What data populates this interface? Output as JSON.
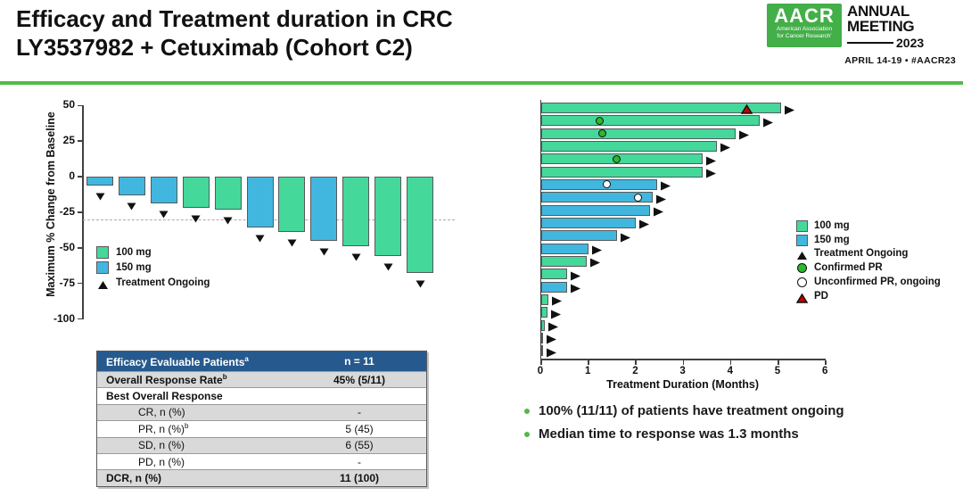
{
  "header": {
    "title_line1": "Efficacy and Treatment duration in CRC",
    "title_line2": "LY3537982 + Cetuximab (Cohort C2)",
    "logo": {
      "acronym": "AACR",
      "org_line1": "American Association",
      "org_line2": "for Cancer Research'",
      "event_line1": "ANNUAL",
      "event_line2": "MEETING",
      "event_year": "2023",
      "dates": "APRIL 14-19 • #AACR23"
    }
  },
  "colors": {
    "dose_100mg": "#44D89B",
    "dose_150mg": "#41B7DF",
    "header_rule_green": "#53B94A",
    "logo_green": "#43AF49",
    "table_header_bg": "#265A8E",
    "table_row_shaded": "#D9D9D9",
    "pd_red": "#C00000",
    "confirmed_pr_green": "#2DB82D",
    "bullet_green": "#53B94A"
  },
  "chart_data": [
    {
      "id": "waterfall",
      "type": "bar",
      "title": "",
      "ylabel": "Maximum % Change from Baseline",
      "ylim": [
        -100,
        50
      ],
      "yticks": [
        50,
        25,
        0,
        -25,
        -50,
        -75,
        -100
      ],
      "reference_line_y": -30,
      "grid": false,
      "legend_position": "inside-left",
      "legend": [
        {
          "marker": "square",
          "color": "dose_100mg",
          "label": "100 mg"
        },
        {
          "marker": "square",
          "color": "dose_150mg",
          "label": "150 mg"
        },
        {
          "marker": "triangle-up-black",
          "label": "Treatment Ongoing"
        }
      ],
      "bars": [
        {
          "value": -6,
          "dose": "150 mg",
          "treatment_ongoing": true
        },
        {
          "value": -13,
          "dose": "150 mg",
          "treatment_ongoing": true
        },
        {
          "value": -19,
          "dose": "150 mg",
          "treatment_ongoing": true
        },
        {
          "value": -22,
          "dose": "100 mg",
          "treatment_ongoing": true
        },
        {
          "value": -23,
          "dose": "100 mg",
          "treatment_ongoing": true
        },
        {
          "value": -36,
          "dose": "150 mg",
          "treatment_ongoing": true
        },
        {
          "value": -39,
          "dose": "100 mg",
          "treatment_ongoing": true
        },
        {
          "value": -45,
          "dose": "150 mg",
          "treatment_ongoing": true
        },
        {
          "value": -49,
          "dose": "100 mg",
          "treatment_ongoing": true
        },
        {
          "value": -56,
          "dose": "100 mg",
          "treatment_ongoing": true
        },
        {
          "value": -68,
          "dose": "100 mg",
          "treatment_ongoing": true
        }
      ]
    },
    {
      "id": "swimmer",
      "type": "bar",
      "orientation": "horizontal",
      "xlabel": "Treatment Duration (Months)",
      "xlim": [
        0,
        6
      ],
      "xticks": [
        0,
        1,
        2,
        3,
        4,
        5,
        6
      ],
      "legend": [
        {
          "marker": "square",
          "color": "dose_100mg",
          "label": "100 mg"
        },
        {
          "marker": "square",
          "color": "dose_150mg",
          "label": "150 mg"
        },
        {
          "marker": "triangle-up-black",
          "label": "Treatment Ongoing"
        },
        {
          "marker": "circle-green",
          "label": "Confirmed PR"
        },
        {
          "marker": "circle-white",
          "label": "Unconfirmed PR, ongoing"
        },
        {
          "marker": "triangle-up-red",
          "label": "PD"
        }
      ],
      "bars": [
        {
          "duration_months": 5.05,
          "dose": "100 mg",
          "treatment_ongoing": true,
          "markers": [
            {
              "type": "pd",
              "x": 4.35
            }
          ]
        },
        {
          "duration_months": 4.6,
          "dose": "100 mg",
          "treatment_ongoing": true,
          "markers": [
            {
              "type": "confirmed_pr",
              "x": 1.25
            }
          ]
        },
        {
          "duration_months": 4.1,
          "dose": "100 mg",
          "treatment_ongoing": true,
          "markers": [
            {
              "type": "confirmed_pr",
              "x": 1.3
            }
          ]
        },
        {
          "duration_months": 3.7,
          "dose": "100 mg",
          "treatment_ongoing": true,
          "markers": []
        },
        {
          "duration_months": 3.4,
          "dose": "100 mg",
          "treatment_ongoing": true,
          "markers": [
            {
              "type": "confirmed_pr",
              "x": 1.6
            }
          ]
        },
        {
          "duration_months": 3.4,
          "dose": "100 mg",
          "treatment_ongoing": true,
          "markers": []
        },
        {
          "duration_months": 2.45,
          "dose": "150 mg",
          "treatment_ongoing": true,
          "markers": [
            {
              "type": "unconfirmed_pr",
              "x": 1.4
            }
          ]
        },
        {
          "duration_months": 2.35,
          "dose": "150 mg",
          "treatment_ongoing": true,
          "markers": [
            {
              "type": "unconfirmed_pr",
              "x": 2.05
            }
          ]
        },
        {
          "duration_months": 2.3,
          "dose": "150 mg",
          "treatment_ongoing": true,
          "markers": []
        },
        {
          "duration_months": 2.0,
          "dose": "150 mg",
          "treatment_ongoing": true,
          "markers": []
        },
        {
          "duration_months": 1.6,
          "dose": "150 mg",
          "treatment_ongoing": true,
          "markers": []
        },
        {
          "duration_months": 1.0,
          "dose": "150 mg",
          "treatment_ongoing": true,
          "markers": []
        },
        {
          "duration_months": 0.95,
          "dose": "100 mg",
          "treatment_ongoing": true,
          "markers": []
        },
        {
          "duration_months": 0.55,
          "dose": "100 mg",
          "treatment_ongoing": true,
          "markers": []
        },
        {
          "duration_months": 0.55,
          "dose": "150 mg",
          "treatment_ongoing": true,
          "markers": []
        },
        {
          "duration_months": 0.15,
          "dose": "100 mg",
          "treatment_ongoing": true,
          "markers": []
        },
        {
          "duration_months": 0.13,
          "dose": "100 mg",
          "treatment_ongoing": true,
          "markers": []
        },
        {
          "duration_months": 0.08,
          "dose": "100 mg",
          "treatment_ongoing": true,
          "markers": []
        },
        {
          "duration_months": 0.04,
          "dose": "100 mg",
          "treatment_ongoing": true,
          "markers": []
        },
        {
          "duration_months": 0.04,
          "dose": "100 mg",
          "treatment_ongoing": true,
          "markers": []
        }
      ]
    }
  ],
  "table": {
    "header": {
      "label": "Efficacy Evaluable Patients",
      "label_sup": "a",
      "value": "n = 11"
    },
    "rows": [
      {
        "label": "Overall Response Rate",
        "label_sup": "b",
        "value": "45% (5/11)",
        "bold": true,
        "indent": 0,
        "shaded": true
      },
      {
        "label": "Best Overall Response",
        "label_sup": "",
        "value": "",
        "bold": true,
        "indent": 0,
        "shaded": false
      },
      {
        "label": "CR, n (%)",
        "label_sup": "",
        "value": "-",
        "bold": false,
        "indent": 1,
        "shaded": true
      },
      {
        "label": "PR, n (%)",
        "label_sup": "b",
        "value": "5 (45)",
        "bold": false,
        "indent": 1,
        "shaded": false
      },
      {
        "label": "SD, n (%)",
        "label_sup": "",
        "value": "6 (55)",
        "bold": false,
        "indent": 1,
        "shaded": true
      },
      {
        "label": "PD, n (%)",
        "label_sup": "",
        "value": "-",
        "bold": false,
        "indent": 1,
        "shaded": false
      },
      {
        "label": "DCR, n (%)",
        "label_sup": "",
        "value": "11 (100)",
        "bold": true,
        "indent": 0,
        "shaded": true
      }
    ]
  },
  "bullets": [
    "100% (11/11) of patients have treatment ongoing",
    "Median time to response was 1.3 months"
  ]
}
